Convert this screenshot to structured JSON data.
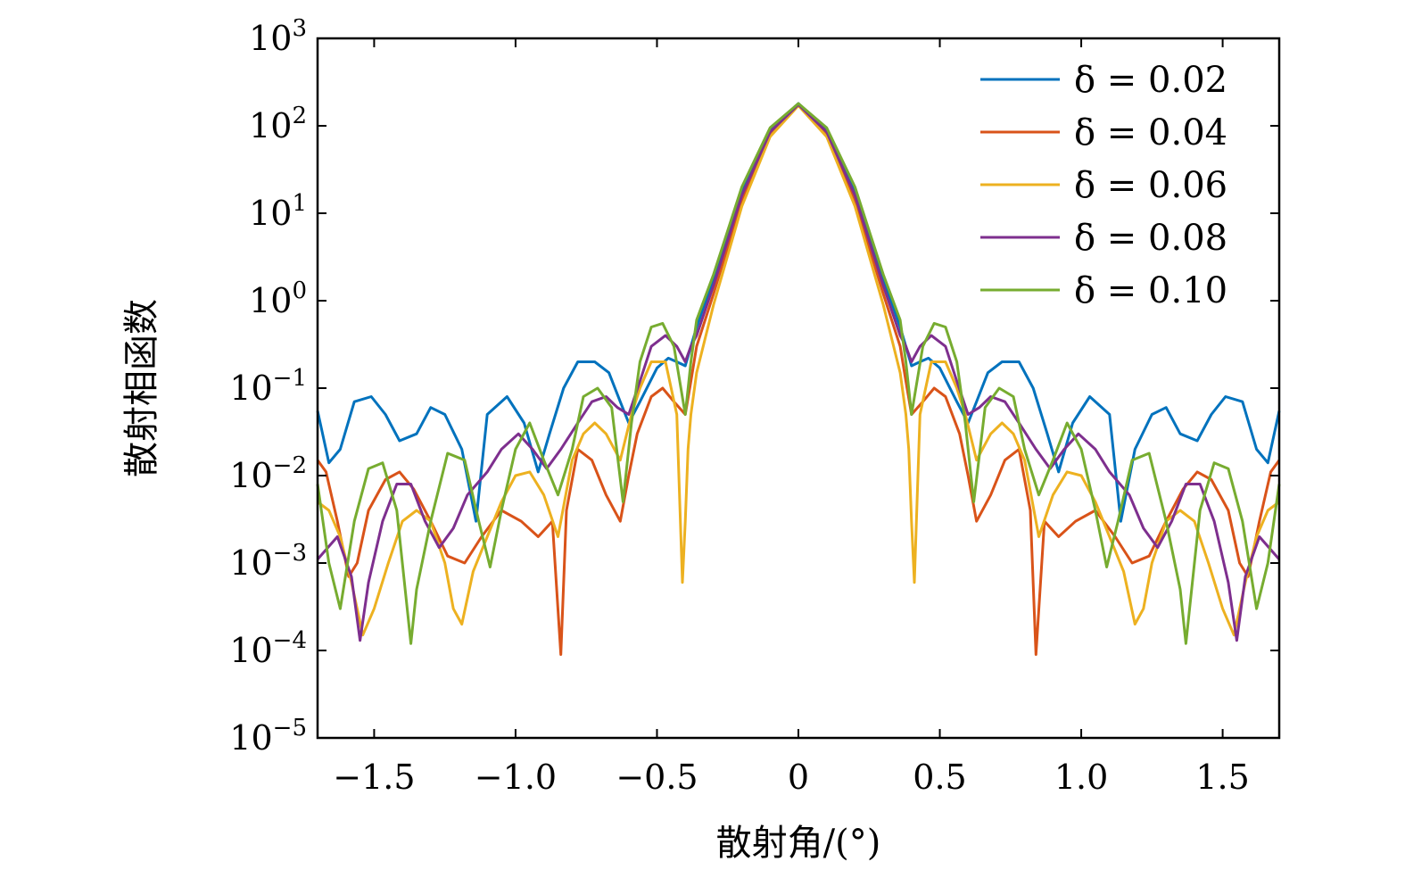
{
  "chart_data": {
    "type": "line",
    "xlabel": "散射角/(°)",
    "ylabel": "散射相函数",
    "xlim": [
      -1.7,
      1.7
    ],
    "ylim": [
      1e-05,
      1000
    ],
    "yscale": "log",
    "legend_position": "top-right",
    "x_ticks": [
      {
        "value": -1.5,
        "label": "−1.5"
      },
      {
        "value": -1.0,
        "label": "−1.0"
      },
      {
        "value": -0.5,
        "label": "−0.5"
      },
      {
        "value": 0,
        "label": "0"
      },
      {
        "value": 0.5,
        "label": "0.5"
      },
      {
        "value": 1.0,
        "label": "1.0"
      },
      {
        "value": 1.5,
        "label": "1.5"
      }
    ],
    "y_ticks": [
      {
        "value": 1e-05,
        "base": "10",
        "exp": "−5"
      },
      {
        "value": 0.0001,
        "base": "10",
        "exp": "−4"
      },
      {
        "value": 0.001,
        "base": "10",
        "exp": "−3"
      },
      {
        "value": 0.01,
        "base": "10",
        "exp": "−2"
      },
      {
        "value": 0.1,
        "base": "10",
        "exp": "−1"
      },
      {
        "value": 1,
        "base": "10",
        "exp": "0"
      },
      {
        "value": 10,
        "base": "10",
        "exp": "1"
      },
      {
        "value": 100,
        "base": "10",
        "exp": "2"
      },
      {
        "value": 1000,
        "base": "10",
        "exp": "3"
      }
    ],
    "series": [
      {
        "name": "δ = 0.02",
        "color": "#0072BD",
        "x": [
          0,
          0.1,
          0.2,
          0.3,
          0.36,
          0.38,
          0.4,
          0.43,
          0.46,
          0.5,
          0.56,
          0.6,
          0.63,
          0.67,
          0.72,
          0.78,
          0.83,
          0.88,
          0.92,
          0.97,
          1.03,
          1.1,
          1.14,
          1.19,
          1.25,
          1.3,
          1.35,
          1.41,
          1.46,
          1.51,
          1.57,
          1.62,
          1.66,
          1.7
        ],
        "y": [
          180,
          90,
          18,
          1.8,
          0.5,
          0.3,
          0.18,
          0.2,
          0.22,
          0.17,
          0.07,
          0.04,
          0.07,
          0.15,
          0.2,
          0.2,
          0.1,
          0.03,
          0.011,
          0.04,
          0.08,
          0.05,
          0.003,
          0.02,
          0.05,
          0.06,
          0.03,
          0.025,
          0.05,
          0.08,
          0.07,
          0.02,
          0.014,
          0.055
        ]
      },
      {
        "name": "δ = 0.04",
        "color": "#D95319",
        "x": [
          0,
          0.1,
          0.2,
          0.3,
          0.36,
          0.38,
          0.4,
          0.44,
          0.48,
          0.52,
          0.57,
          0.6,
          0.63,
          0.68,
          0.73,
          0.78,
          0.82,
          0.84,
          0.87,
          0.92,
          0.98,
          1.05,
          1.12,
          1.18,
          1.24,
          1.3,
          1.36,
          1.41,
          1.46,
          1.52,
          1.56,
          1.59,
          1.63,
          1.67,
          1.7
        ],
        "y": [
          175,
          80,
          14,
          1.2,
          0.3,
          0.12,
          0.05,
          0.07,
          0.1,
          0.08,
          0.03,
          0.01,
          0.003,
          0.006,
          0.015,
          0.02,
          0.004,
          9e-05,
          0.003,
          0.002,
          0.003,
          0.004,
          0.002,
          0.001,
          0.0012,
          0.003,
          0.007,
          0.011,
          0.009,
          0.004,
          0.001,
          0.0007,
          0.003,
          0.011,
          0.015
        ]
      },
      {
        "name": "δ = 0.06",
        "color": "#EDB120",
        "x": [
          0,
          0.1,
          0.2,
          0.3,
          0.36,
          0.38,
          0.39,
          0.4,
          0.41,
          0.43,
          0.47,
          0.52,
          0.56,
          0.59,
          0.63,
          0.68,
          0.72,
          0.76,
          0.8,
          0.85,
          0.9,
          0.95,
          1.0,
          1.05,
          1.1,
          1.15,
          1.19,
          1.22,
          1.25,
          1.3,
          1.35,
          1.4,
          1.45,
          1.5,
          1.54,
          1.58,
          1.62,
          1.66,
          1.7
        ],
        "y": [
          170,
          75,
          12,
          0.9,
          0.15,
          0.05,
          0.02,
          0.003,
          0.0006,
          0.05,
          0.2,
          0.2,
          0.1,
          0.05,
          0.015,
          0.03,
          0.04,
          0.03,
          0.015,
          0.002,
          0.006,
          0.011,
          0.01,
          0.005,
          0.002,
          0.0008,
          0.0002,
          0.0003,
          0.001,
          0.003,
          0.004,
          0.003,
          0.001,
          0.0003,
          0.00015,
          0.0006,
          0.002,
          0.004,
          0.005
        ]
      },
      {
        "name": "δ = 0.08",
        "color": "#7E2F8E",
        "x": [
          0,
          0.1,
          0.2,
          0.3,
          0.36,
          0.38,
          0.4,
          0.43,
          0.47,
          0.52,
          0.56,
          0.6,
          0.64,
          0.68,
          0.73,
          0.78,
          0.84,
          0.89,
          0.94,
          0.99,
          1.05,
          1.1,
          1.17,
          1.22,
          1.27,
          1.32,
          1.37,
          1.42,
          1.47,
          1.52,
          1.55,
          1.58,
          1.63,
          1.7
        ],
        "y": [
          175,
          85,
          16,
          1.5,
          0.4,
          0.3,
          0.2,
          0.3,
          0.4,
          0.3,
          0.12,
          0.05,
          0.06,
          0.08,
          0.07,
          0.04,
          0.02,
          0.012,
          0.02,
          0.03,
          0.02,
          0.011,
          0.006,
          0.0025,
          0.0015,
          0.003,
          0.008,
          0.008,
          0.003,
          0.0006,
          0.00013,
          0.0007,
          0.002,
          0.0011
        ]
      },
      {
        "name": "δ = 0.10",
        "color": "#77AC30",
        "x": [
          0,
          0.1,
          0.2,
          0.3,
          0.36,
          0.38,
          0.4,
          0.44,
          0.48,
          0.52,
          0.56,
          0.59,
          0.62,
          0.66,
          0.71,
          0.76,
          0.8,
          0.85,
          0.9,
          0.95,
          1.0,
          1.05,
          1.09,
          1.13,
          1.18,
          1.24,
          1.3,
          1.35,
          1.37,
          1.42,
          1.47,
          1.52,
          1.57,
          1.62,
          1.66,
          1.7
        ],
        "y": [
          180,
          95,
          20,
          2.0,
          0.6,
          0.2,
          0.05,
          0.3,
          0.55,
          0.5,
          0.2,
          0.04,
          0.005,
          0.06,
          0.1,
          0.08,
          0.02,
          0.006,
          0.015,
          0.04,
          0.02,
          0.004,
          0.0009,
          0.003,
          0.015,
          0.018,
          0.003,
          0.0005,
          0.00012,
          0.004,
          0.014,
          0.012,
          0.003,
          0.0003,
          0.001,
          0.008
        ]
      }
    ]
  }
}
